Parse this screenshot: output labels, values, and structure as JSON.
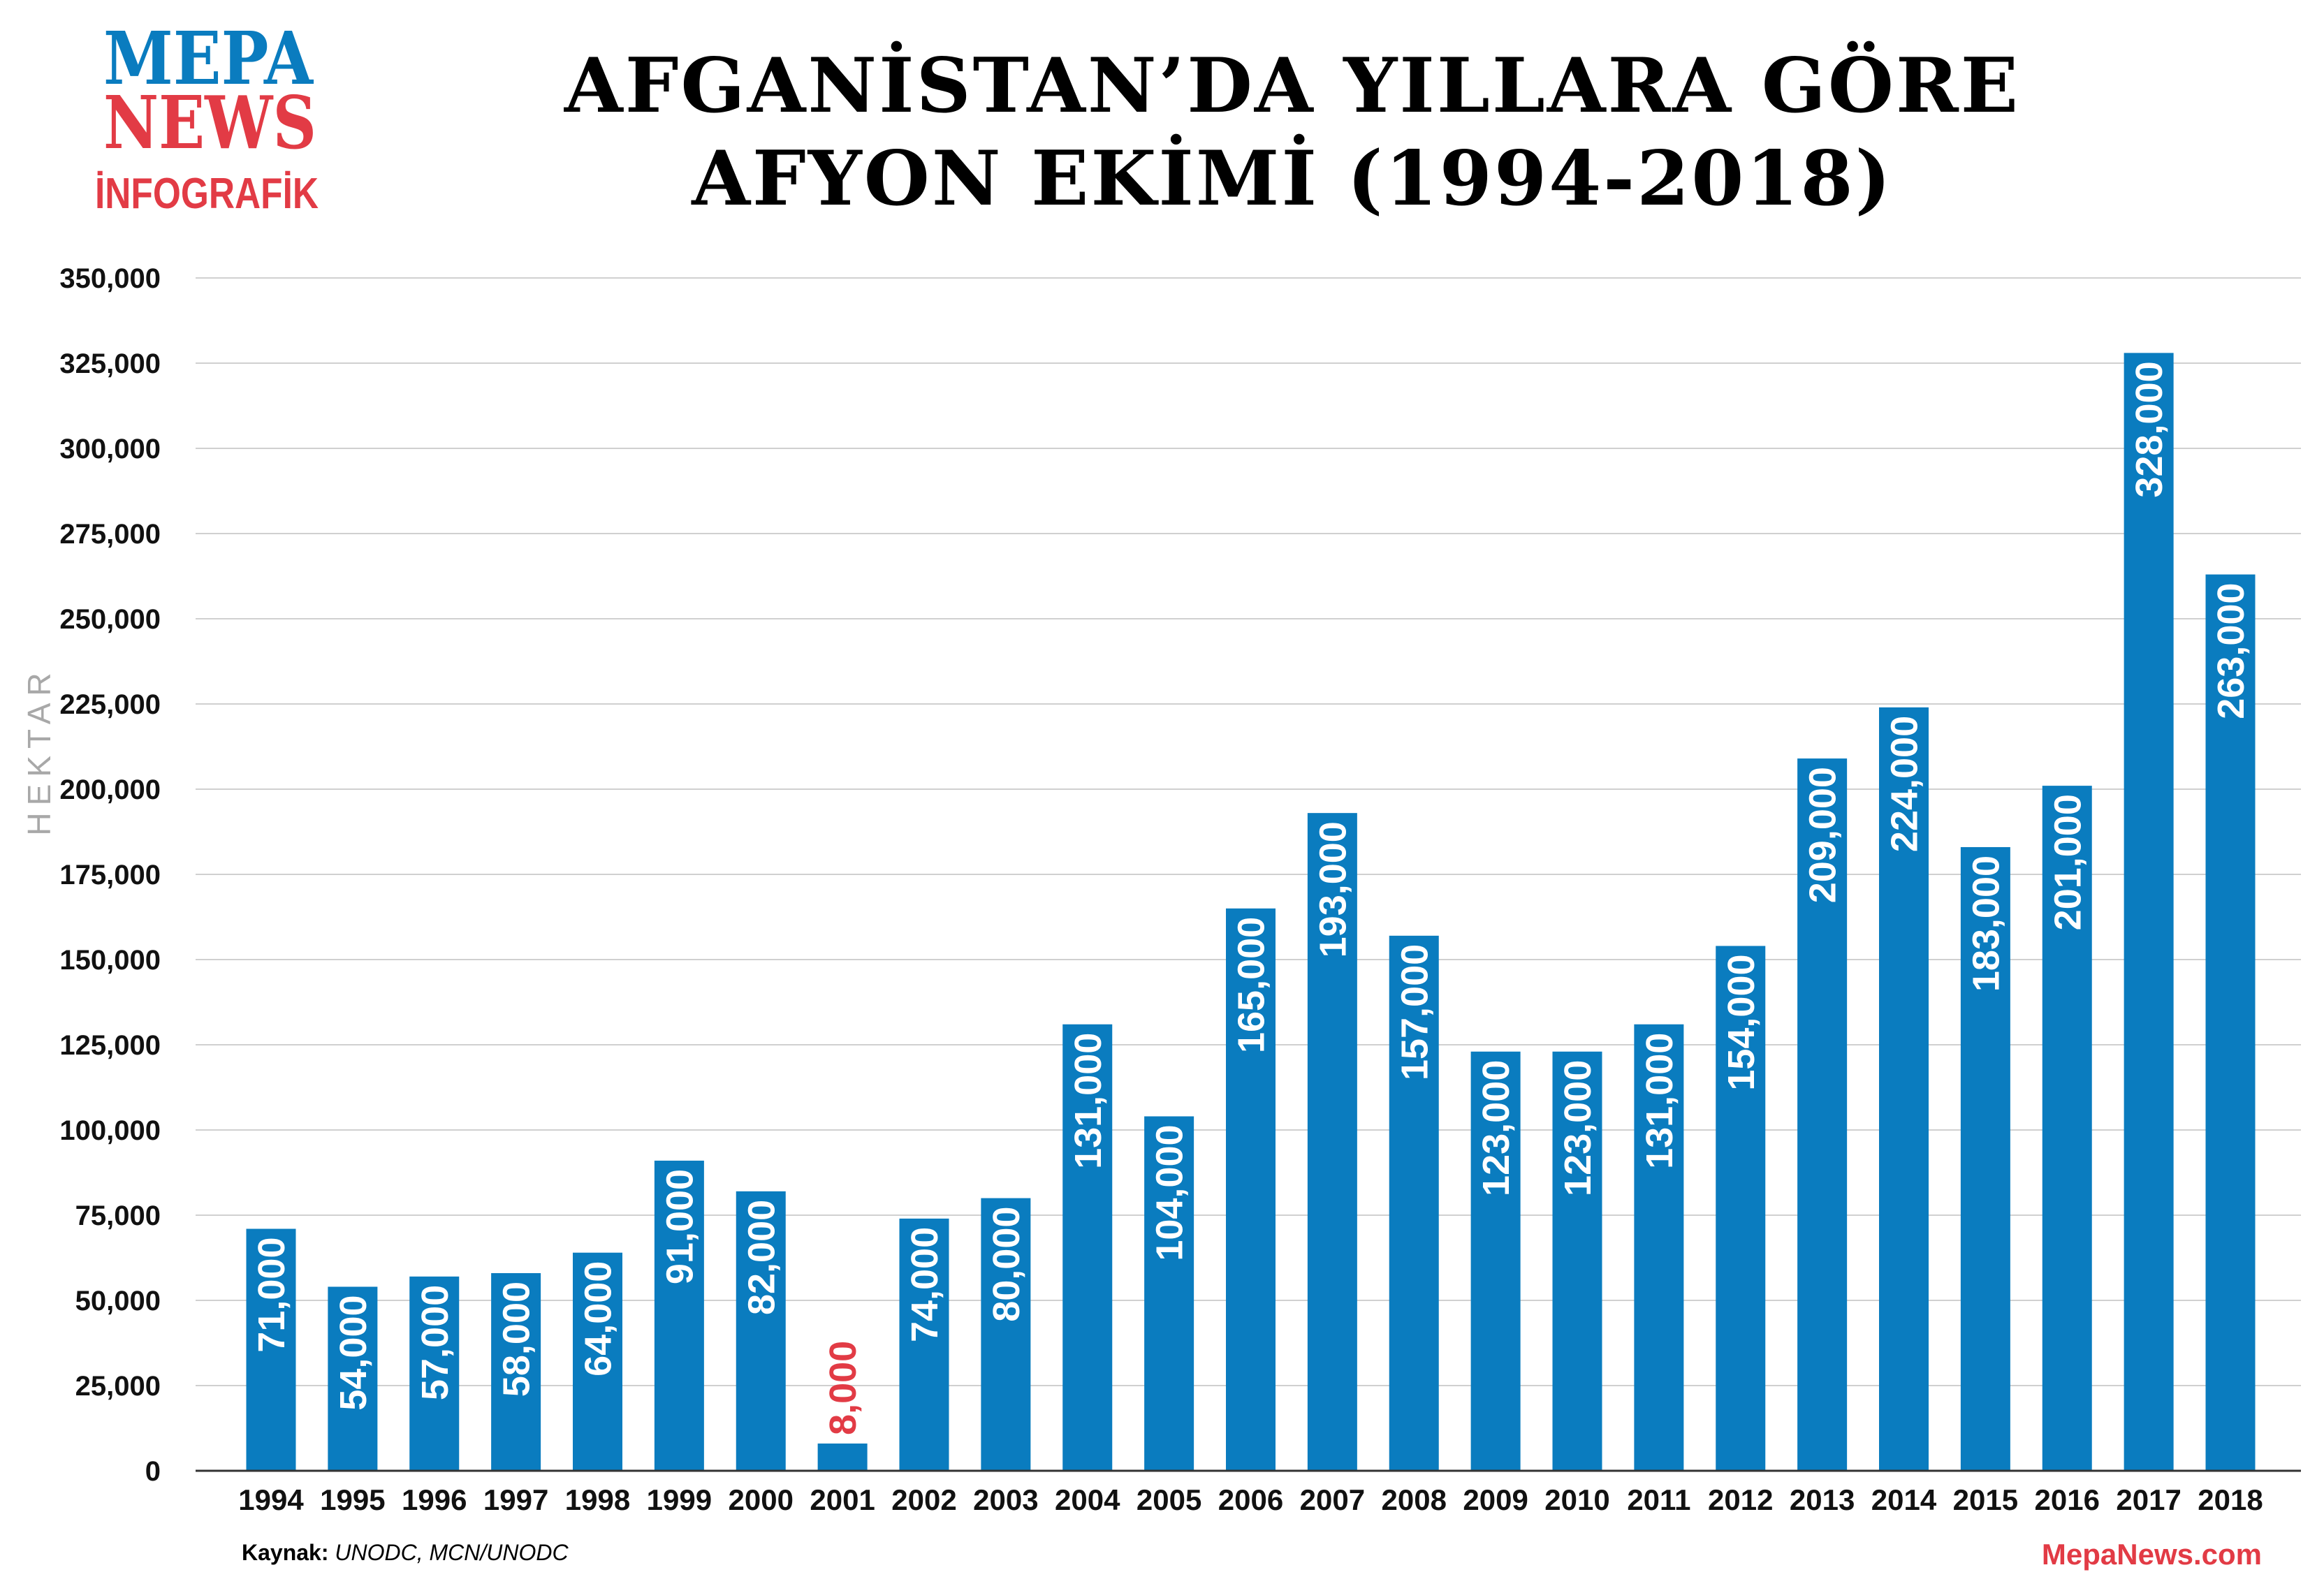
{
  "logo": {
    "line1": "MEPA",
    "line2": "NEWS",
    "line3": "İNFOGRAFİK"
  },
  "colors": {
    "bar": "#0a7cbf",
    "highlight_label": "#e23b45",
    "grid": "#d0d0d0"
  },
  "chart_data": {
    "type": "bar",
    "title_lines": [
      "AFGANİSTAN’DA YILLARA GÖRE",
      "AFYON EKİMİ (1994-2018)"
    ],
    "xlabel": "",
    "ylabel": "HEKTAR",
    "ylim": [
      0,
      350000
    ],
    "grid": true,
    "yticks": [
      0,
      25000,
      50000,
      75000,
      100000,
      125000,
      150000,
      175000,
      200000,
      225000,
      250000,
      275000,
      300000,
      325000,
      350000
    ],
    "ytick_labels": [
      "0",
      "25,000",
      "50,000",
      "75,000",
      "100,000",
      "125,000",
      "150,000",
      "175,000",
      "200,000",
      "225,000",
      "250,000",
      "275,000",
      "300,000",
      "325,000",
      "350,000"
    ],
    "categories": [
      "1994",
      "1995",
      "1996",
      "1997",
      "1998",
      "1999",
      "2000",
      "2001",
      "2002",
      "2003",
      "2004",
      "2005",
      "2006",
      "2007",
      "2008",
      "2009",
      "2010",
      "2011",
      "2012",
      "2013",
      "2014",
      "2015",
      "2016",
      "2017",
      "2018"
    ],
    "values": [
      71000,
      54000,
      57000,
      58000,
      64000,
      91000,
      82000,
      8000,
      74000,
      80000,
      131000,
      104000,
      165000,
      193000,
      157000,
      123000,
      123000,
      131000,
      154000,
      209000,
      224000,
      183000,
      201000,
      328000,
      263000
    ],
    "value_labels": [
      "71,000",
      "54,000",
      "57,000",
      "58,000",
      "64,000",
      "91,000",
      "82,000",
      "8,000",
      "74,000",
      "80,000",
      "131,000",
      "104,000",
      "165,000",
      "193,000",
      "157,000",
      "123,000",
      "123,000",
      "131,000",
      "154,000",
      "209,000",
      "224,000",
      "183,000",
      "201,000",
      "328,000",
      "263,000"
    ],
    "highlighted": [
      "2001"
    ]
  },
  "footer": {
    "source_label": "Kaynak:",
    "source_value": "UNODC, MCN/UNODC",
    "site": "MepaNews.com"
  }
}
